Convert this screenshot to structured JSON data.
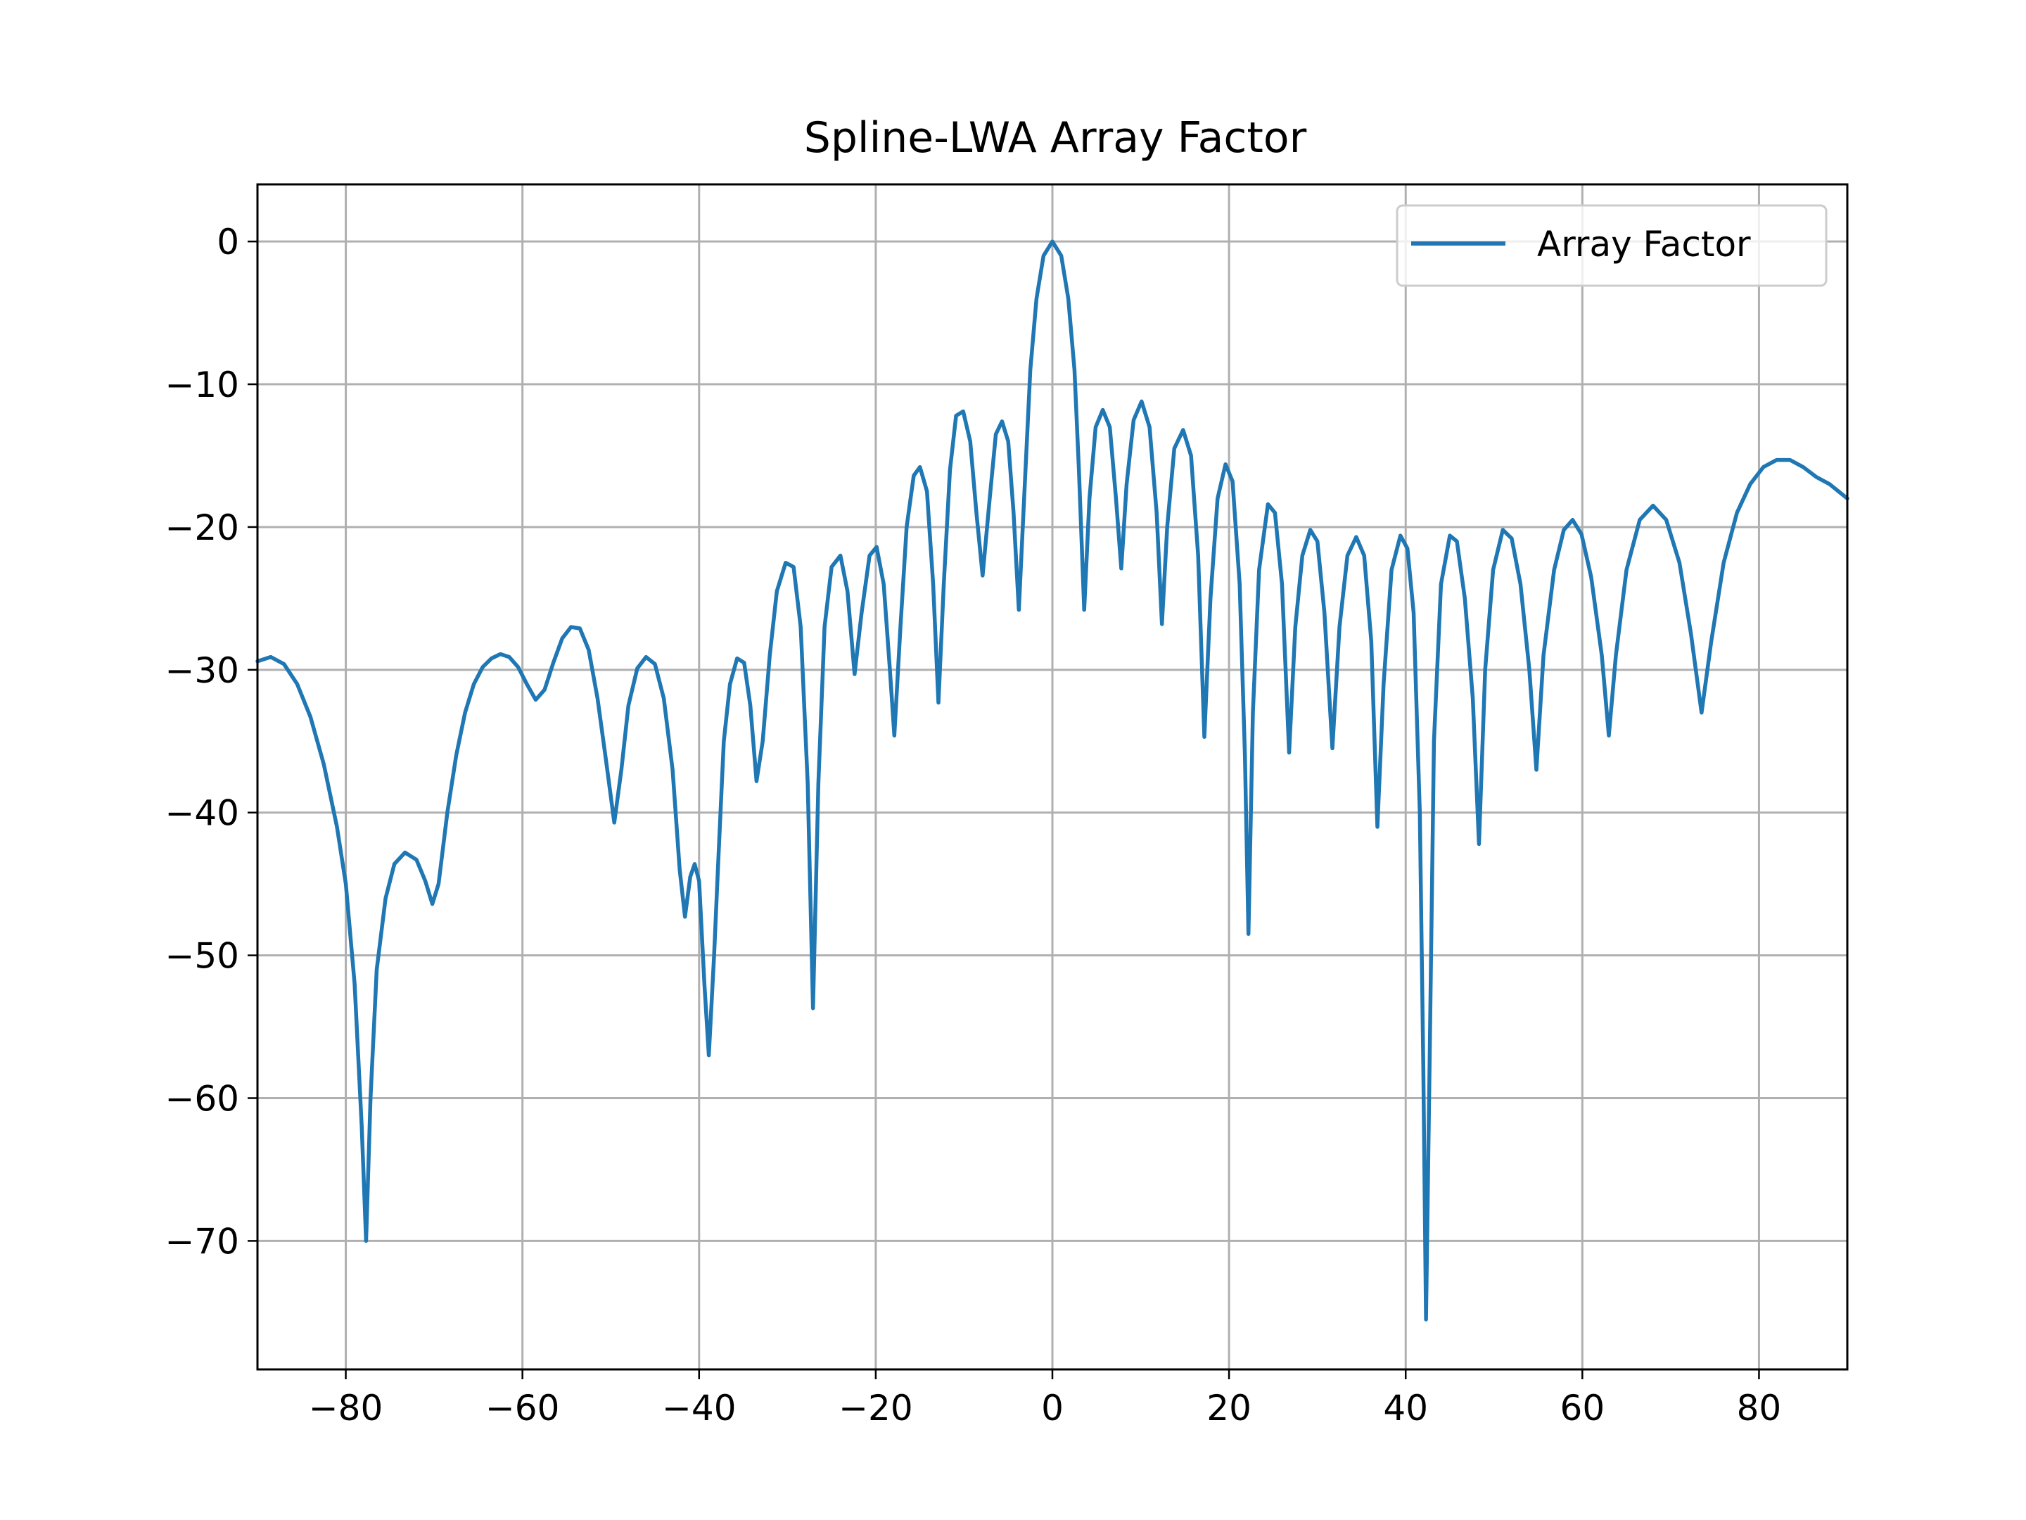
{
  "chart_data": {
    "type": "line",
    "title": "Spline-LWA Array Factor",
    "xlabel": "",
    "ylabel": "",
    "xlim": [
      -90,
      90
    ],
    "ylim": [
      -79,
      4
    ],
    "xticks": [
      -80,
      -60,
      -40,
      -20,
      0,
      20,
      40,
      60,
      80
    ],
    "yticks": [
      0,
      -10,
      -20,
      -30,
      -40,
      -50,
      -60,
      -70
    ],
    "xtick_labels": [
      "−80",
      "−60",
      "−40",
      "−20",
      "0",
      "20",
      "40",
      "60",
      "80"
    ],
    "ytick_labels": [
      "0",
      "−10",
      "−20",
      "−30",
      "−40",
      "−50",
      "−60",
      "−70"
    ],
    "grid": true,
    "legend": "top-right",
    "colors": {
      "series": "#1f77b4",
      "grid": "#b0b0b0",
      "axes": "#000000"
    },
    "series": [
      {
        "name": "Array Factor",
        "points": [
          [
            -90,
            -29.4
          ],
          [
            -88.5,
            -29.1
          ],
          [
            -87,
            -29.6
          ],
          [
            -85.5,
            -31
          ],
          [
            -84,
            -33.3
          ],
          [
            -82.5,
            -36.6
          ],
          [
            -81,
            -41
          ],
          [
            -80,
            -45
          ],
          [
            -79,
            -52
          ],
          [
            -78.2,
            -62
          ],
          [
            -77.7,
            -70
          ],
          [
            -77.2,
            -60
          ],
          [
            -76.5,
            -51
          ],
          [
            -75.5,
            -46
          ],
          [
            -74.5,
            -43.6
          ],
          [
            -73.3,
            -42.8
          ],
          [
            -72,
            -43.3
          ],
          [
            -71,
            -44.8
          ],
          [
            -70.2,
            -46.4
          ],
          [
            -69.5,
            -45
          ],
          [
            -68.5,
            -40
          ],
          [
            -67.5,
            -36
          ],
          [
            -66.5,
            -33
          ],
          [
            -65.5,
            -31
          ],
          [
            -64.5,
            -29.8
          ],
          [
            -63.5,
            -29.2
          ],
          [
            -62.5,
            -28.9
          ],
          [
            -61.5,
            -29.1
          ],
          [
            -60.5,
            -29.8
          ],
          [
            -59.5,
            -31
          ],
          [
            -58.5,
            -32.1
          ],
          [
            -57.5,
            -31.4
          ],
          [
            -56.5,
            -29.5
          ],
          [
            -55.5,
            -27.8
          ],
          [
            -54.5,
            -27
          ],
          [
            -53.5,
            -27.1
          ],
          [
            -52.5,
            -28.6
          ],
          [
            -51.5,
            -32
          ],
          [
            -50.5,
            -36.5
          ],
          [
            -49.6,
            -40.7
          ],
          [
            -48.8,
            -37
          ],
          [
            -48,
            -32.5
          ],
          [
            -47,
            -29.9
          ],
          [
            -46,
            -29.1
          ],
          [
            -45,
            -29.6
          ],
          [
            -44,
            -32
          ],
          [
            -43,
            -37
          ],
          [
            -42.2,
            -44
          ],
          [
            -41.6,
            -47.3
          ],
          [
            -41,
            -44.5
          ],
          [
            -40.5,
            -43.6
          ],
          [
            -40,
            -44.8
          ],
          [
            -39.4,
            -52
          ],
          [
            -38.9,
            -57
          ],
          [
            -38.3,
            -50
          ],
          [
            -37.8,
            -43
          ],
          [
            -37.2,
            -35
          ],
          [
            -36.5,
            -31
          ],
          [
            -35.7,
            -29.2
          ],
          [
            -34.9,
            -29.5
          ],
          [
            -34.2,
            -32.5
          ],
          [
            -33.5,
            -37.8
          ],
          [
            -32.8,
            -35
          ],
          [
            -32,
            -29
          ],
          [
            -31.2,
            -24.5
          ],
          [
            -30.2,
            -22.5
          ],
          [
            -29.3,
            -22.8
          ],
          [
            -28.5,
            -27
          ],
          [
            -27.7,
            -38
          ],
          [
            -27.1,
            -53.7
          ],
          [
            -26.5,
            -38
          ],
          [
            -25.8,
            -27
          ],
          [
            -25,
            -22.8
          ],
          [
            -24,
            -22
          ],
          [
            -23.2,
            -24.5
          ],
          [
            -22.4,
            -30.3
          ],
          [
            -21.6,
            -26
          ],
          [
            -20.7,
            -22
          ],
          [
            -19.9,
            -21.4
          ],
          [
            -19.1,
            -24
          ],
          [
            -18.4,
            -30
          ],
          [
            -17.9,
            -34.6
          ],
          [
            -17.2,
            -27
          ],
          [
            -16.5,
            -20
          ],
          [
            -15.7,
            -16.4
          ],
          [
            -15,
            -15.8
          ],
          [
            -14.2,
            -17.5
          ],
          [
            -13.5,
            -24
          ],
          [
            -12.9,
            -32.3
          ],
          [
            -12.3,
            -24
          ],
          [
            -11.6,
            -16
          ],
          [
            -10.9,
            -12.2
          ],
          [
            -10.1,
            -11.9
          ],
          [
            -9.3,
            -14
          ],
          [
            -8.6,
            -19
          ],
          [
            -7.9,
            -23.4
          ],
          [
            -7.1,
            -18
          ],
          [
            -6.4,
            -13.5
          ],
          [
            -5.7,
            -12.6
          ],
          [
            -5,
            -14
          ],
          [
            -4.4,
            -19
          ],
          [
            -3.8,
            -25.8
          ],
          [
            -3.2,
            -18
          ],
          [
            -2.5,
            -9
          ],
          [
            -1.8,
            -4
          ],
          [
            -1,
            -1
          ],
          [
            0,
            0
          ],
          [
            1,
            -1
          ],
          [
            1.8,
            -4
          ],
          [
            2.5,
            -9
          ],
          [
            3,
            -16
          ],
          [
            3.6,
            -25.8
          ],
          [
            4.2,
            -18
          ],
          [
            4.9,
            -13
          ],
          [
            5.7,
            -11.8
          ],
          [
            6.5,
            -13
          ],
          [
            7.2,
            -18
          ],
          [
            7.8,
            -22.9
          ],
          [
            8.4,
            -17
          ],
          [
            9.2,
            -12.5
          ],
          [
            10.1,
            -11.2
          ],
          [
            11,
            -13
          ],
          [
            11.8,
            -19
          ],
          [
            12.4,
            -26.8
          ],
          [
            13,
            -20
          ],
          [
            13.8,
            -14.5
          ],
          [
            14.8,
            -13.2
          ],
          [
            15.7,
            -15
          ],
          [
            16.5,
            -22
          ],
          [
            17.2,
            -34.7
          ],
          [
            17.9,
            -25
          ],
          [
            18.7,
            -18
          ],
          [
            19.6,
            -15.6
          ],
          [
            20.4,
            -16.8
          ],
          [
            21.2,
            -24
          ],
          [
            21.8,
            -36
          ],
          [
            22.2,
            -48.5
          ],
          [
            22.7,
            -33
          ],
          [
            23.4,
            -23
          ],
          [
            24.4,
            -18.4
          ],
          [
            25.2,
            -19
          ],
          [
            26,
            -24
          ],
          [
            26.8,
            -35.8
          ],
          [
            27.5,
            -27
          ],
          [
            28.3,
            -22
          ],
          [
            29.2,
            -20.2
          ],
          [
            30,
            -21
          ],
          [
            30.8,
            -26
          ],
          [
            31.7,
            -35.5
          ],
          [
            32.5,
            -27
          ],
          [
            33.4,
            -22
          ],
          [
            34.4,
            -20.7
          ],
          [
            35.3,
            -22
          ],
          [
            36.1,
            -28
          ],
          [
            36.8,
            -41
          ],
          [
            37.5,
            -31
          ],
          [
            38.4,
            -23
          ],
          [
            39.4,
            -20.6
          ],
          [
            40.2,
            -21.5
          ],
          [
            40.9,
            -26
          ],
          [
            41.6,
            -40
          ],
          [
            42,
            -58
          ],
          [
            42.3,
            -75.5
          ],
          [
            42.7,
            -58
          ],
          [
            43.2,
            -35
          ],
          [
            44,
            -24
          ],
          [
            45,
            -20.6
          ],
          [
            45.8,
            -21
          ],
          [
            46.7,
            -25
          ],
          [
            47.6,
            -32
          ],
          [
            48.3,
            -42.2
          ],
          [
            49,
            -30
          ],
          [
            49.9,
            -23
          ],
          [
            51,
            -20.2
          ],
          [
            52,
            -20.8
          ],
          [
            53,
            -24
          ],
          [
            54,
            -30
          ],
          [
            54.8,
            -37
          ],
          [
            55.6,
            -29
          ],
          [
            56.8,
            -23
          ],
          [
            57.9,
            -20.2
          ],
          [
            58.9,
            -19.5
          ],
          [
            59.9,
            -20.5
          ],
          [
            61,
            -23.5
          ],
          [
            62.2,
            -29
          ],
          [
            63,
            -34.6
          ],
          [
            63.8,
            -29
          ],
          [
            65,
            -23
          ],
          [
            66.5,
            -19.5
          ],
          [
            68,
            -18.5
          ],
          [
            69.5,
            -19.5
          ],
          [
            71,
            -22.5
          ],
          [
            72.3,
            -27.5
          ],
          [
            73.5,
            -33
          ],
          [
            74.6,
            -28
          ],
          [
            76,
            -22.5
          ],
          [
            77.5,
            -19
          ],
          [
            79,
            -17
          ],
          [
            80.5,
            -15.8
          ],
          [
            82,
            -15.3
          ],
          [
            83.5,
            -15.3
          ],
          [
            85,
            -15.8
          ],
          [
            86.5,
            -16.5
          ],
          [
            88,
            -17
          ],
          [
            89,
            -17.5
          ],
          [
            90,
            -18
          ]
        ]
      }
    ]
  }
}
